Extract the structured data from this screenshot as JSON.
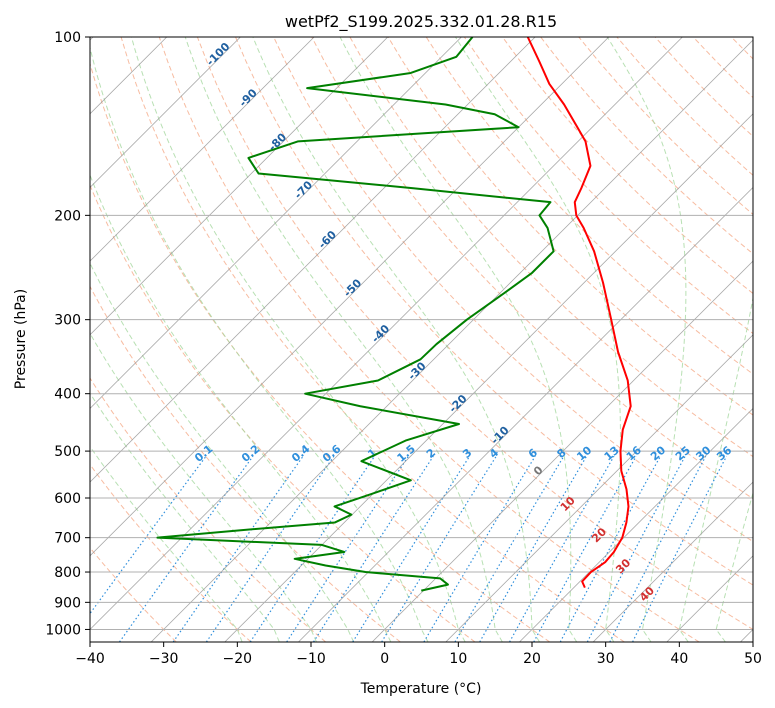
{
  "chart_data": {
    "type": "line",
    "chart_kind": "skew-T log-P diagram",
    "title": "wetPf2_S199.2025.332.01.28.R15",
    "xlabel": "Temperature (°C)",
    "ylabel": "Pressure (hPa)",
    "xlim": [
      -40,
      50
    ],
    "ylim": [
      1050,
      100
    ],
    "y_scale": "log",
    "x_ticks": [
      -40,
      -30,
      -20,
      -10,
      0,
      10,
      20,
      30,
      40,
      50
    ],
    "x_tick_labels": [
      "−40",
      "−30",
      "−20",
      "−10",
      "0",
      "10",
      "20",
      "30",
      "40",
      "50"
    ],
    "y_ticks": [
      1000,
      900,
      800,
      700,
      600,
      500,
      400,
      300,
      200,
      100
    ],
    "y_tick_labels": [
      "1000",
      "900",
      "800",
      "700",
      "600",
      "500",
      "400",
      "300",
      "200",
      "100"
    ],
    "grid": true,
    "series": [
      {
        "role": "temperature",
        "color": "#ff0000",
        "points": [
          {
            "p": 850,
            "t": 21.5
          },
          {
            "p": 830,
            "t": 20.3
          },
          {
            "p": 800,
            "t": 20.2
          },
          {
            "p": 770,
            "t": 20.8
          },
          {
            "p": 740,
            "t": 20.6
          },
          {
            "p": 700,
            "t": 19.8
          },
          {
            "p": 660,
            "t": 18.3
          },
          {
            "p": 620,
            "t": 16.4
          },
          {
            "p": 580,
            "t": 13.8
          },
          {
            "p": 540,
            "t": 10.6
          },
          {
            "p": 500,
            "t": 7.8
          },
          {
            "p": 460,
            "t": 5.2
          },
          {
            "p": 420,
            "t": 3.1
          },
          {
            "p": 380,
            "t": -0.8
          },
          {
            "p": 340,
            "t": -6.0
          },
          {
            "p": 300,
            "t": -11.3
          },
          {
            "p": 260,
            "t": -17.4
          },
          {
            "p": 230,
            "t": -22.9
          },
          {
            "p": 210,
            "t": -27.5
          },
          {
            "p": 200,
            "t": -30.2
          },
          {
            "p": 190,
            "t": -32.2
          },
          {
            "p": 180,
            "t": -33.2
          },
          {
            "p": 165,
            "t": -35.0
          },
          {
            "p": 150,
            "t": -39.0
          },
          {
            "p": 140,
            "t": -42.8
          },
          {
            "p": 130,
            "t": -46.9
          },
          {
            "p": 120,
            "t": -51.7
          },
          {
            "p": 110,
            "t": -56.1
          },
          {
            "p": 100,
            "t": -61.0
          }
        ]
      },
      {
        "role": "dewpoint",
        "color": "#008000",
        "points": [
          {
            "p": 860,
            "t": -0.3
          },
          {
            "p": 840,
            "t": 2.5
          },
          {
            "p": 820,
            "t": 0.6
          },
          {
            "p": 800,
            "t": -10.4
          },
          {
            "p": 780,
            "t": -16.7
          },
          {
            "p": 760,
            "t": -21.8
          },
          {
            "p": 740,
            "t": -16.0
          },
          {
            "p": 720,
            "t": -20.0
          },
          {
            "p": 700,
            "t": -43.3
          },
          {
            "p": 680,
            "t": -33.0
          },
          {
            "p": 660,
            "t": -21.3
          },
          {
            "p": 640,
            "t": -20.1
          },
          {
            "p": 620,
            "t": -23.5
          },
          {
            "p": 590,
            "t": -20.1
          },
          {
            "p": 560,
            "t": -16.7
          },
          {
            "p": 520,
            "t": -26.0
          },
          {
            "p": 480,
            "t": -22.8
          },
          {
            "p": 450,
            "t": -17.8
          },
          {
            "p": 420,
            "t": -33.6
          },
          {
            "p": 400,
            "t": -42.8
          },
          {
            "p": 380,
            "t": -34.7
          },
          {
            "p": 350,
            "t": -31.8
          },
          {
            "p": 330,
            "t": -31.7
          },
          {
            "p": 300,
            "t": -30.9
          },
          {
            "p": 270,
            "t": -29.4
          },
          {
            "p": 250,
            "t": -28.4
          },
          {
            "p": 230,
            "t": -28.4
          },
          {
            "p": 210,
            "t": -32.4
          },
          {
            "p": 200,
            "t": -35.2
          },
          {
            "p": 190,
            "t": -35.5
          },
          {
            "p": 180,
            "t": -56.0
          },
          {
            "p": 170,
            "t": -79.0
          },
          {
            "p": 160,
            "t": -82.5
          },
          {
            "p": 150,
            "t": -78.0
          },
          {
            "p": 142,
            "t": -50.0
          },
          {
            "p": 135,
            "t": -55.0
          },
          {
            "p": 130,
            "t": -63.0
          },
          {
            "p": 122,
            "t": -84.0
          },
          {
            "p": 115,
            "t": -72.0
          },
          {
            "p": 108,
            "t": -68.0
          },
          {
            "p": 100,
            "t": -68.5
          }
        ]
      }
    ],
    "mixing_ratio_labels": [
      "0.1",
      "0.2",
      "0.4",
      "0.6",
      "1",
      "1.5",
      "2",
      "3",
      "4",
      "6",
      "8",
      "10",
      "13",
      "16",
      "20",
      "25",
      "30",
      "36"
    ],
    "dry_adiabat_labels": [
      "-100",
      "-90",
      "-80",
      "-70",
      "-60",
      "-50",
      "-40",
      "-30",
      "-20",
      "-10",
      "0"
    ],
    "moist_adiabat_labels": [
      "10",
      "20",
      "30",
      "40"
    ]
  },
  "colors": {
    "temperature": "#ff0000",
    "dewpoint": "#008000",
    "dry_adiabat": "#f4a582",
    "moist_adiabat": "#a6d8a0",
    "mixing_ratio": "#2f8fdc",
    "isotherm": "#999999",
    "grid": "#b0b0b0"
  }
}
